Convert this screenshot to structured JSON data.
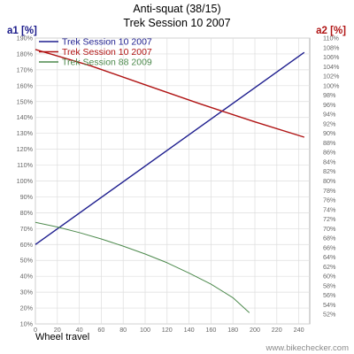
{
  "chart_data": {
    "type": "line",
    "title": "Anti-squat (38/15)",
    "subtitle": "Trek Session 10 2007",
    "xlabel": "Wheel travel",
    "y1label": "a1 [%]",
    "y2label": "a2 [%]",
    "xlim": [
      0,
      250
    ],
    "y1lim": [
      10,
      190
    ],
    "y2lim": [
      50,
      110
    ],
    "x_ticks": [
      0,
      20,
      40,
      60,
      80,
      100,
      120,
      140,
      160,
      180,
      200,
      220,
      240
    ],
    "y1_ticks": [
      10,
      20,
      30,
      40,
      50,
      60,
      70,
      80,
      90,
      100,
      110,
      120,
      130,
      140,
      150,
      160,
      170,
      180,
      190
    ],
    "y2_ticks": [
      52,
      54,
      56,
      58,
      60,
      62,
      64,
      66,
      68,
      70,
      72,
      74,
      76,
      78,
      80,
      82,
      84,
      86,
      88,
      90,
      92,
      94,
      96,
      98,
      100,
      102,
      104,
      106,
      108,
      110
    ],
    "grid": true,
    "legend_position": "top-left",
    "series": [
      {
        "name": "Trek Session 10 2007",
        "axis": "a1",
        "color": "#1f1f8f",
        "x": [
          0,
          245
        ],
        "y": [
          60,
          181
        ]
      },
      {
        "name": "Trek Session 10 2007",
        "axis": "a2",
        "color": "#b01414",
        "x": [
          0,
          50,
          100,
          150,
          200,
          245
        ],
        "y": [
          107.6,
          104.2,
          100.2,
          96.2,
          92.4,
          89.2
        ]
      },
      {
        "name": "Trek Session 88 2009",
        "axis": "a1",
        "color": "#4d8a4d",
        "x": [
          0,
          20,
          40,
          60,
          80,
          100,
          120,
          140,
          160,
          180,
          195
        ],
        "y": [
          74,
          71,
          67.5,
          63.5,
          59,
          54,
          48.5,
          42,
          35,
          26.5,
          17
        ]
      }
    ],
    "watermark": "www.bikechecker.com"
  }
}
